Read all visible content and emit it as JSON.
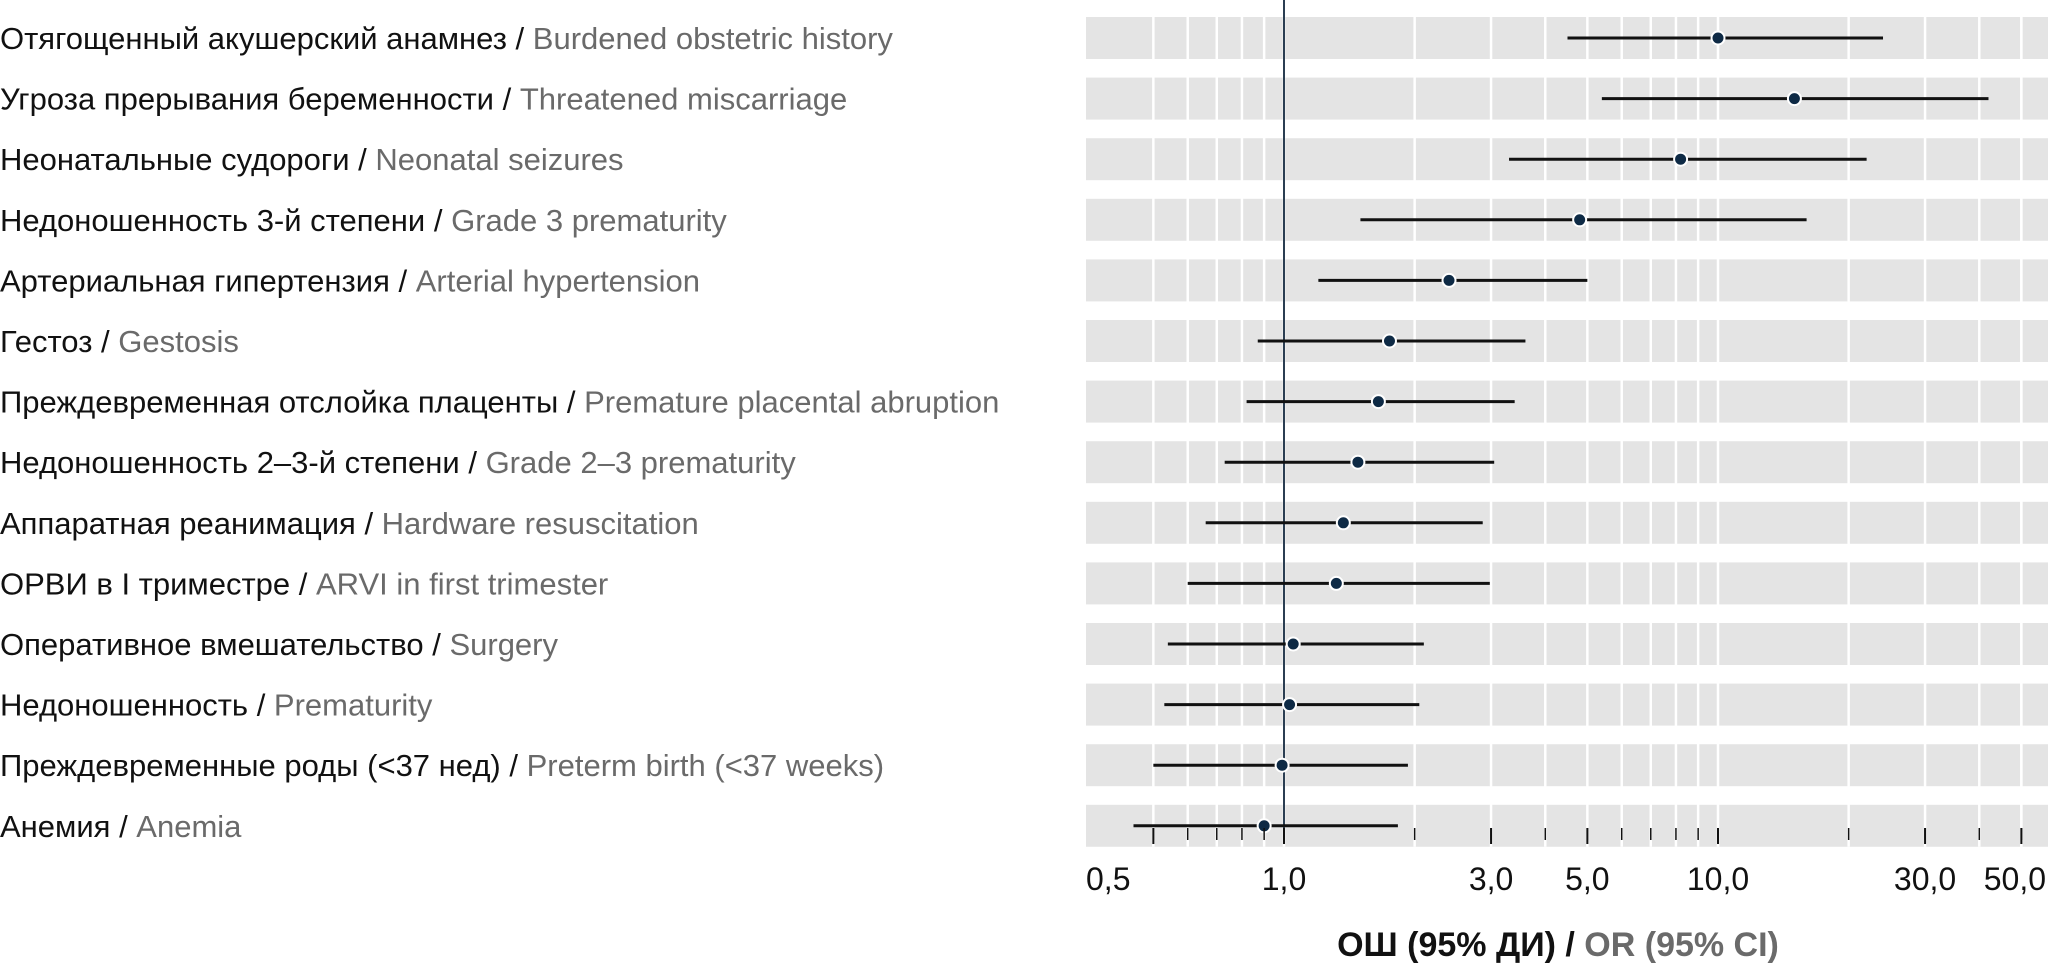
{
  "chart_data": {
    "type": "forest",
    "scale": "log",
    "xlim": [
      0.5,
      50
    ],
    "reference_line": 1,
    "xticks": [
      {
        "value": 0.5,
        "label": "0,5"
      },
      {
        "value": 1,
        "label": "1,0"
      },
      {
        "value": 3,
        "label": "3,0"
      },
      {
        "value": 5,
        "label": "5,0"
      },
      {
        "value": 10,
        "label": "10,0"
      },
      {
        "value": 30,
        "label": "30,0"
      },
      {
        "value": 50,
        "label": "50,0"
      }
    ],
    "xlabel": {
      "ru": "ОШ (95% ДИ)",
      "sep": " / ",
      "en": "OR (95% CI)"
    },
    "grid": true,
    "rows": [
      {
        "ru": "Отягощенный акушерский анамнез",
        "en": "Burdened obstetric history",
        "or": 10.0,
        "lo": 4.5,
        "hi": 24.0
      },
      {
        "ru": "Угроза прерывания беременности",
        "en": "Threatened miscarriage",
        "or": 15.0,
        "lo": 5.4,
        "hi": 42.0
      },
      {
        "ru": "Неонатальные судороги",
        "en": "Neonatal seizures",
        "or": 8.2,
        "lo": 3.3,
        "hi": 22.0
      },
      {
        "ru": "Недоношенность 3-й степени",
        "en": "Grade 3 prematurity",
        "or": 4.8,
        "lo": 1.5,
        "hi": 16.0
      },
      {
        "ru": "Артериальная гипертензия",
        "en": "Arterial hypertension",
        "or": 2.4,
        "lo": 1.2,
        "hi": 5.0
      },
      {
        "ru": "Гестоз",
        "en": "Gestosis",
        "or": 1.75,
        "lo": 0.87,
        "hi": 3.6
      },
      {
        "ru": "Преждевременная отслойка плаценты",
        "en": "Premature placental abruption",
        "or": 1.65,
        "lo": 0.82,
        "hi": 3.4
      },
      {
        "ru": "Недоношенность 2–3-й степени",
        "en": "Grade 2–3 prematurity",
        "or": 1.48,
        "lo": 0.73,
        "hi": 3.05
      },
      {
        "ru": "Аппаратная реанимация",
        "en": "Hardware resuscitation",
        "or": 1.37,
        "lo": 0.66,
        "hi": 2.87
      },
      {
        "ru": "ОРВИ в I триместре",
        "en": "ARVI in first trimester",
        "or": 1.32,
        "lo": 0.6,
        "hi": 2.98
      },
      {
        "ru": "Оперативное вмешательство",
        "en": "Surgery",
        "or": 1.05,
        "lo": 0.54,
        "hi": 2.1
      },
      {
        "ru": "Недоношенность",
        "en": "Prematurity",
        "or": 1.03,
        "lo": 0.53,
        "hi": 2.05
      },
      {
        "ru": "Преждевременные роды (<37 нед)",
        "en": "Preterm birth (<37 weeks)",
        "or": 0.99,
        "lo": 0.5,
        "hi": 1.93
      },
      {
        "ru": "Анемия",
        "en": "Anemia",
        "or": 0.9,
        "lo": 0.45,
        "hi": 1.83
      }
    ],
    "colors": {
      "band": "#e4e4e4",
      "gridline": "#ffffff",
      "ci_line": "#111111",
      "point": "#0e2a45",
      "reference": "#2b3e52",
      "label_ru": "#111111",
      "label_en": "#6a6a6a"
    }
  }
}
